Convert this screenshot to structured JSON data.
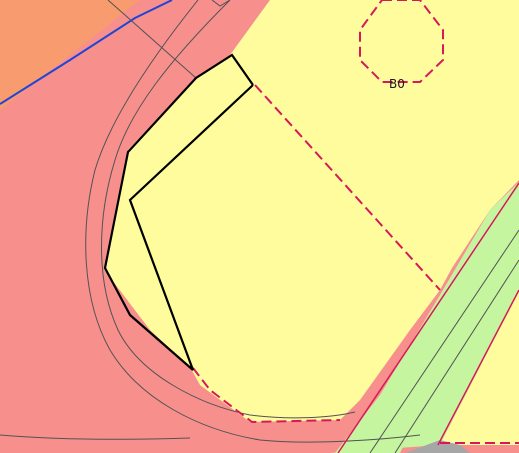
{
  "map": {
    "labels": {
      "parcel_number": "В0"
    },
    "colors": {
      "background_orange": "#f89b6f",
      "red_zone": "#f7908d",
      "yellow_zone": "#fefc9c",
      "green_strip": "#c6f5a0",
      "gray_block": "#a6a6a6",
      "blue_line": "#1e46d6",
      "magenta_dash": "#d6195b",
      "black_boundary": "#000000",
      "gray_outline": "#525252"
    }
  }
}
